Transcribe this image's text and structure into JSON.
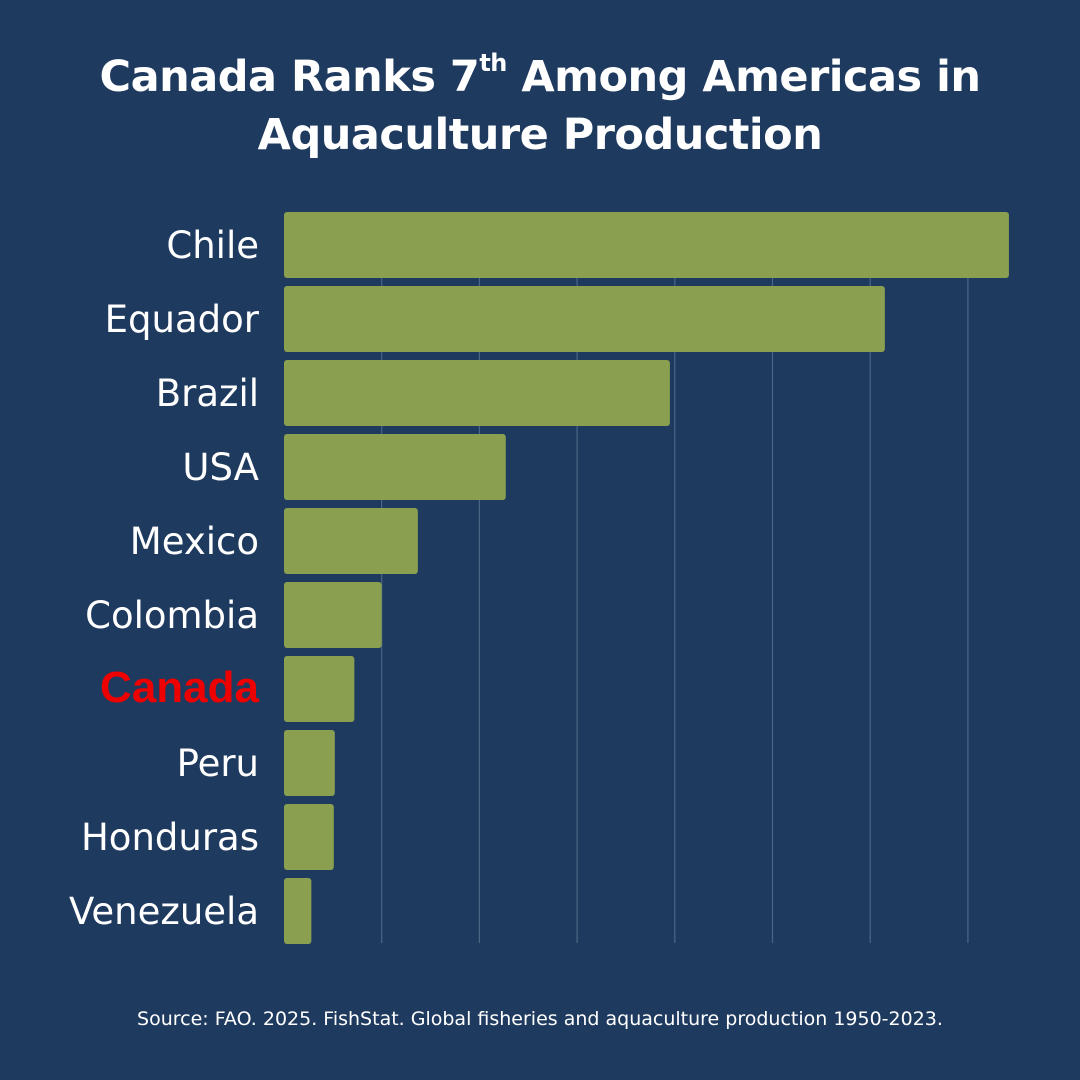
{
  "title": {
    "line1_pre": "Canada Ranks 7",
    "line1_sup": "th",
    "line1_post": " Among Americas in",
    "line2": "Aquaculture Production"
  },
  "source": "Source: FAO. 2025. FishStat. Global fisheries and aquaculture production 1950-2023.",
  "colors": {
    "background": "#1f3a5f",
    "bar": "#8aa050",
    "grid": "#4d6585",
    "label": "#ffffff",
    "highlight": "#ee0000"
  },
  "chart_data": {
    "type": "bar",
    "orientation": "horizontal",
    "title": "Canada Ranks 7th Among Americas in Aquaculture Production",
    "xlabel": "",
    "ylabel": "",
    "xlim": [
      0,
      7.5
    ],
    "grid": true,
    "categories": [
      "Chile",
      "Equador",
      "Brazil",
      "USA",
      "Mexico",
      "Colombia",
      "Canada",
      "Peru",
      "Honduras",
      "Venezuela"
    ],
    "values": [
      7.42,
      6.15,
      3.95,
      2.27,
      1.37,
      1.0,
      0.72,
      0.52,
      0.51,
      0.28
    ],
    "highlight": "Canada"
  }
}
